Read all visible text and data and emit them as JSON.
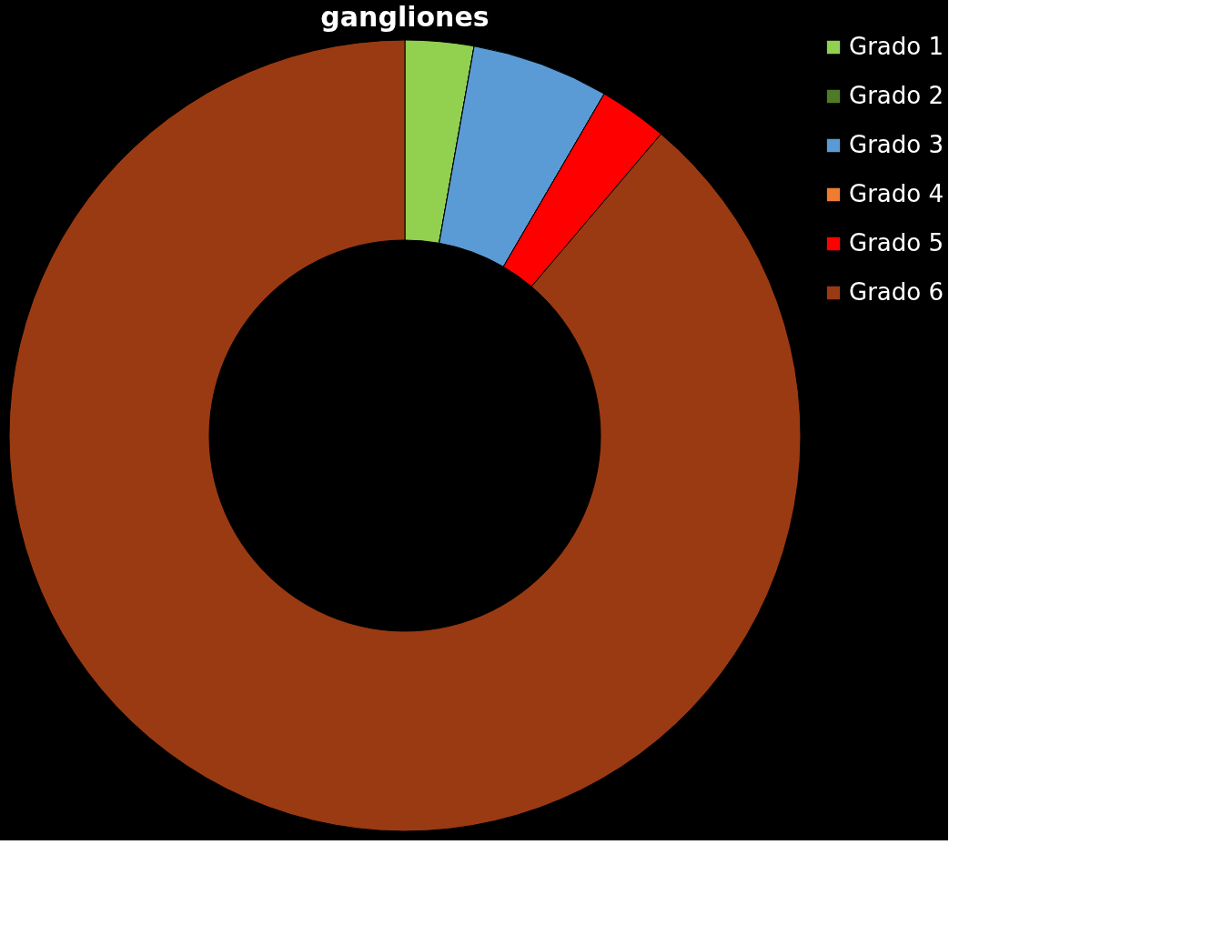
{
  "chart_data": {
    "type": "donut",
    "title": "gangliones",
    "categories": [
      "Grado 1",
      "Grado 2",
      "Grado 3",
      "Grado 4",
      "Grado 5",
      "Grado 6"
    ],
    "values": [
      2.8,
      0,
      5.6,
      0,
      2.8,
      88.8
    ],
    "colors": [
      "#92d050",
      "#4f7a28",
      "#5b9bd5",
      "#ed7d31",
      "#ff0000",
      "#9a3a12"
    ],
    "legend": "right"
  }
}
